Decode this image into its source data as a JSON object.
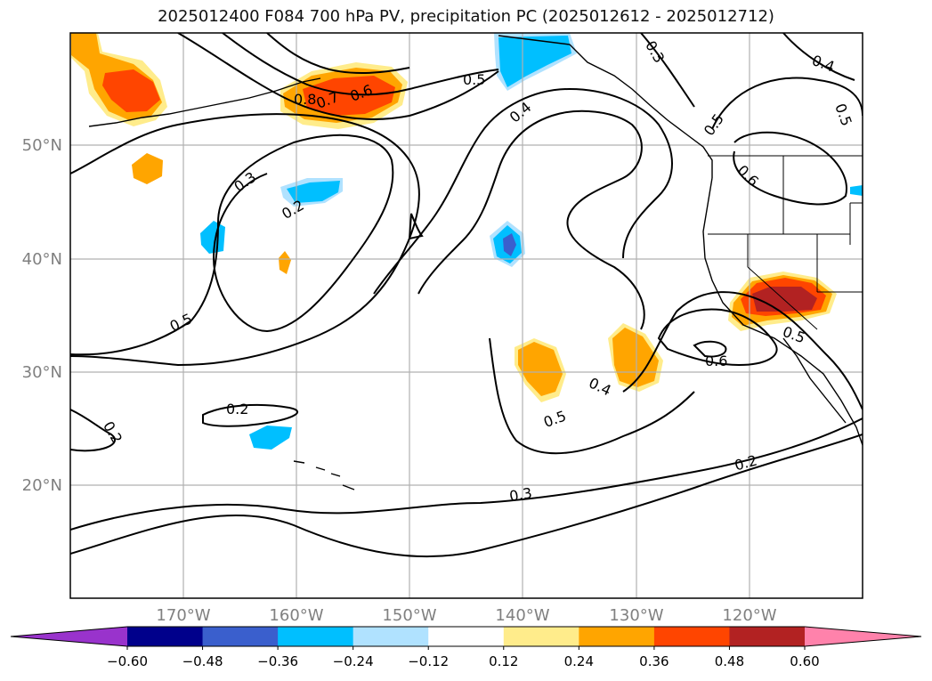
{
  "title": "2025012400 F084 700 hPa PV, precipitation PC (2025012612 - 2025012712)",
  "map": {
    "lon_labels": [
      "170°W",
      "160°W",
      "150°W",
      "140°W",
      "130°W",
      "120°W"
    ],
    "lat_labels": [
      "50°N",
      "40°N",
      "30°N",
      "20°N"
    ],
    "contour_labels": [
      {
        "id": "c1",
        "text": "0.5"
      },
      {
        "id": "c2",
        "text": "0.4"
      },
      {
        "id": "c3",
        "text": "0.3"
      },
      {
        "id": "c4",
        "text": "0.8"
      },
      {
        "id": "c5",
        "text": "0.7"
      },
      {
        "id": "c6",
        "text": "0.6"
      },
      {
        "id": "c7",
        "text": "0.3"
      },
      {
        "id": "c8",
        "text": "0.2"
      },
      {
        "id": "c9",
        "text": "0.5"
      },
      {
        "id": "c10",
        "text": "0.2"
      },
      {
        "id": "c11",
        "text": "0.2"
      },
      {
        "id": "c12",
        "text": "0.4"
      },
      {
        "id": "c13",
        "text": "0.5"
      },
      {
        "id": "c14",
        "text": "0.6"
      },
      {
        "id": "c15",
        "text": "0.5"
      },
      {
        "id": "c16",
        "text": "0.3"
      },
      {
        "id": "c17",
        "text": "0.2"
      },
      {
        "id": "c18",
        "text": "0.5"
      },
      {
        "id": "c19",
        "text": "0.6"
      },
      {
        "id": "c20",
        "text": "0.4"
      },
      {
        "id": "c21",
        "text": "0.5"
      }
    ]
  },
  "colorbar": {
    "colors": [
      "#9933cc",
      "#00008b",
      "#3a5fcd",
      "#00bfff",
      "#b0e2ff",
      "#ffffff",
      "#ffec8b",
      "#ffa500",
      "#ff4500",
      "#b22222",
      "#ff82ab"
    ],
    "tick_labels": [
      "−0.60",
      "−0.48",
      "−0.36",
      "−0.24",
      "−0.12",
      "0.12",
      "0.24",
      "0.36",
      "0.48",
      "0.60"
    ]
  }
}
